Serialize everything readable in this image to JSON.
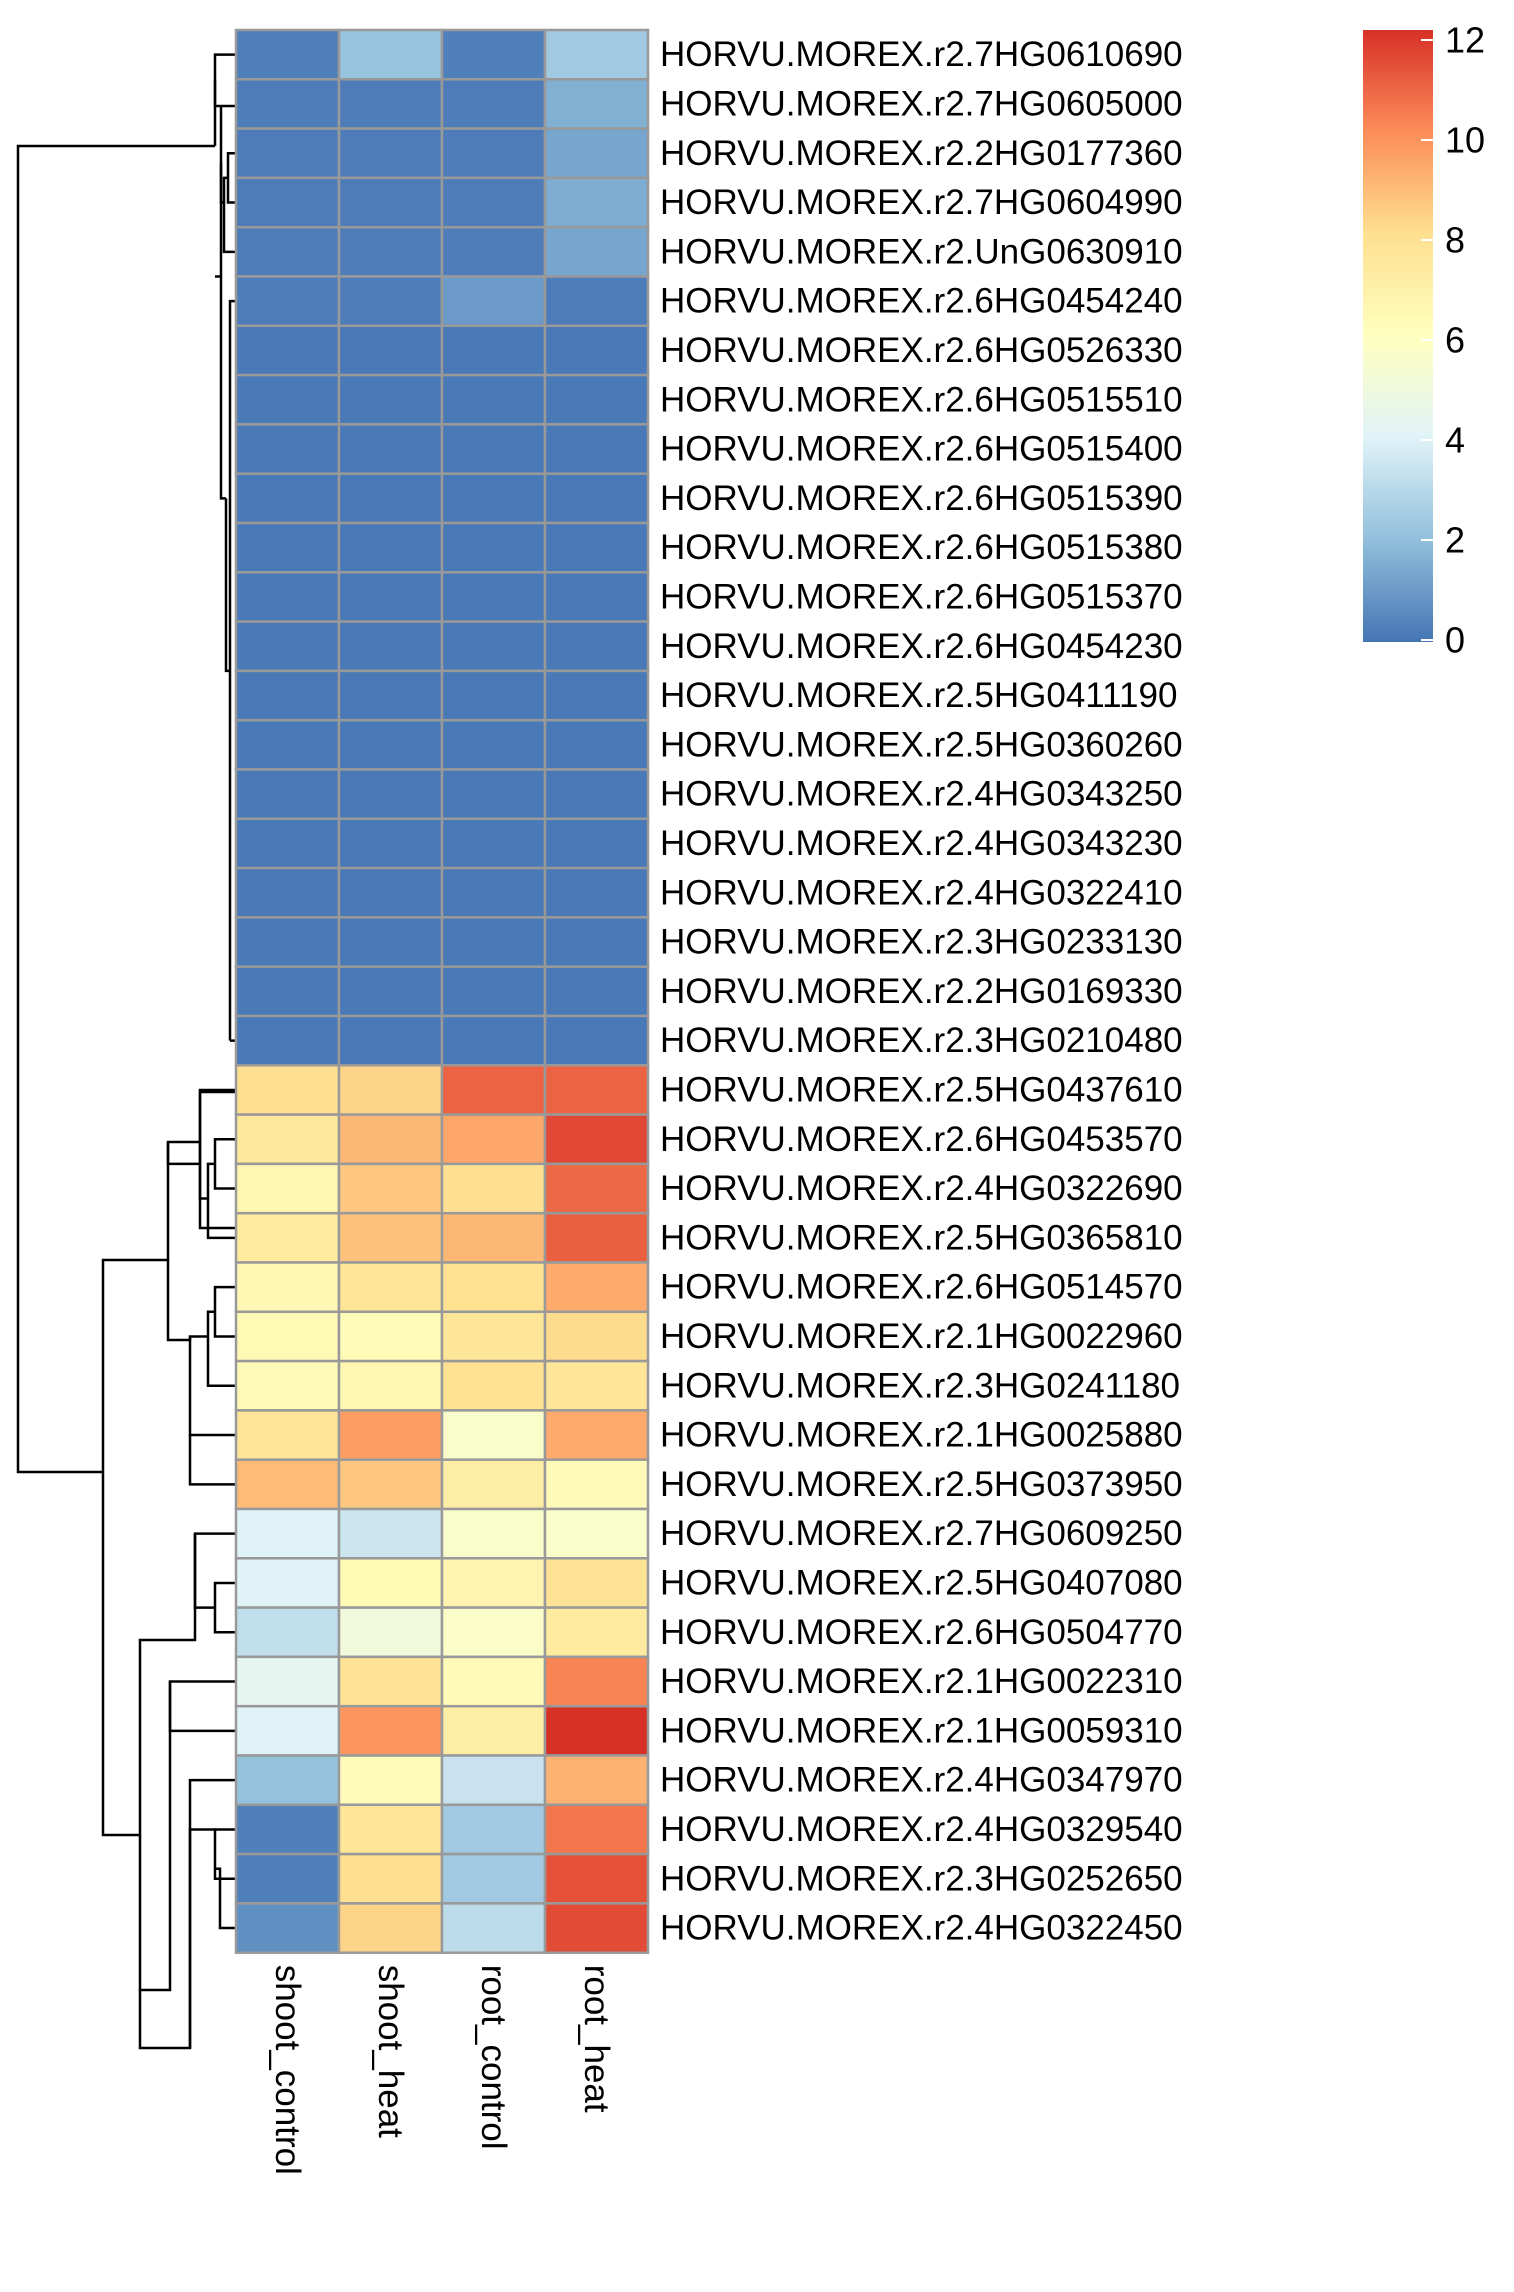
{
  "chart_data": {
    "type": "heatmap",
    "columns": [
      "shoot_control",
      "shoot_heat",
      "root_control",
      "root_heat"
    ],
    "rows": [
      "HORVU.MOREX.r2.7HG0610690",
      "HORVU.MOREX.r2.7HG0605000",
      "HORVU.MOREX.r2.2HG0177360",
      "HORVU.MOREX.r2.7HG0604990",
      "HORVU.MOREX.r2.UnG0630910",
      "HORVU.MOREX.r2.6HG0454240",
      "HORVU.MOREX.r2.6HG0526330",
      "HORVU.MOREX.r2.6HG0515510",
      "HORVU.MOREX.r2.6HG0515400",
      "HORVU.MOREX.r2.6HG0515390",
      "HORVU.MOREX.r2.6HG0515380",
      "HORVU.MOREX.r2.6HG0515370",
      "HORVU.MOREX.r2.6HG0454230",
      "HORVU.MOREX.r2.5HG0411190",
      "HORVU.MOREX.r2.5HG0360260",
      "HORVU.MOREX.r2.4HG0343250",
      "HORVU.MOREX.r2.4HG0343230",
      "HORVU.MOREX.r2.4HG0322410",
      "HORVU.MOREX.r2.3HG0233130",
      "HORVU.MOREX.r2.2HG0169330",
      "HORVU.MOREX.r2.3HG0210480",
      "HORVU.MOREX.r2.5HG0437610",
      "HORVU.MOREX.r2.6HG0453570",
      "HORVU.MOREX.r2.4HG0322690",
      "HORVU.MOREX.r2.5HG0365810",
      "HORVU.MOREX.r2.6HG0514570",
      "HORVU.MOREX.r2.1HG0022960",
      "HORVU.MOREX.r2.3HG0241180",
      "HORVU.MOREX.r2.1HG0025880",
      "HORVU.MOREX.r2.5HG0373950",
      "HORVU.MOREX.r2.7HG0609250",
      "HORVU.MOREX.r2.5HG0407080",
      "HORVU.MOREX.r2.6HG0504770",
      "HORVU.MOREX.r2.1HG0022310",
      "HORVU.MOREX.r2.1HG0059310",
      "HORVU.MOREX.r2.4HG0347970",
      "HORVU.MOREX.r2.4HG0329540",
      "HORVU.MOREX.r2.3HG0252650",
      "HORVU.MOREX.r2.4HG0322450"
    ],
    "values": [
      [
        0.3,
        2.2,
        0.3,
        2.4
      ],
      [
        0.2,
        0.2,
        0.2,
        1.6
      ],
      [
        0.2,
        0.2,
        0.2,
        1.3
      ],
      [
        0.2,
        0.2,
        0.2,
        1.5
      ],
      [
        0.2,
        0.2,
        0.2,
        1.3
      ],
      [
        0.2,
        0.2,
        1.0,
        0.2
      ],
      [
        0.1,
        0.1,
        0.1,
        0.1
      ],
      [
        0.1,
        0.1,
        0.1,
        0.1
      ],
      [
        0.1,
        0.1,
        0.1,
        0.1
      ],
      [
        0.1,
        0.1,
        0.1,
        0.1
      ],
      [
        0.1,
        0.1,
        0.1,
        0.1
      ],
      [
        0.1,
        0.1,
        0.1,
        0.1
      ],
      [
        0.1,
        0.1,
        0.1,
        0.1
      ],
      [
        0.1,
        0.1,
        0.1,
        0.1
      ],
      [
        0.1,
        0.1,
        0.1,
        0.1
      ],
      [
        0.1,
        0.1,
        0.1,
        0.1
      ],
      [
        0.1,
        0.1,
        0.1,
        0.1
      ],
      [
        0.1,
        0.1,
        0.1,
        0.1
      ],
      [
        0.1,
        0.1,
        0.1,
        0.1
      ],
      [
        0.1,
        0.1,
        0.1,
        0.1
      ],
      [
        0.1,
        0.1,
        0.1,
        0.1
      ],
      [
        8.0,
        8.3,
        10.9,
        10.9
      ],
      [
        7.5,
        9.0,
        9.4,
        11.5
      ],
      [
        6.6,
        8.6,
        8.0,
        10.8
      ],
      [
        7.3,
        8.7,
        9.0,
        11.0
      ],
      [
        6.5,
        7.6,
        7.9,
        9.3
      ],
      [
        6.4,
        6.2,
        7.6,
        8.1
      ],
      [
        6.3,
        6.6,
        7.9,
        7.7
      ],
      [
        7.7,
        9.6,
        5.6,
        9.3
      ],
      [
        8.9,
        8.6,
        7.1,
        6.3
      ],
      [
        4.0,
        3.5,
        5.6,
        5.6
      ],
      [
        4.0,
        6.4,
        6.7,
        7.8
      ],
      [
        3.2,
        5.0,
        5.7,
        7.3
      ],
      [
        4.3,
        7.8,
        6.3,
        10.2
      ],
      [
        4.0,
        9.8,
        7.1,
        12.0
      ],
      [
        2.1,
        6.2,
        3.4,
        9.1
      ],
      [
        0.3,
        7.6,
        2.4,
        10.5
      ],
      [
        0.3,
        8.0,
        2.4,
        11.3
      ],
      [
        0.7,
        8.3,
        3.1,
        11.4
      ]
    ],
    "colorbar": {
      "ticks": [
        "0",
        "2",
        "4",
        "6",
        "8",
        "10",
        "12"
      ],
      "range": [
        0,
        12
      ],
      "palette": [
        "#4575B4",
        "#91BFDB",
        "#E0F3F8",
        "#FFFFBF",
        "#FEE090",
        "#FC8D59",
        "#D73027"
      ]
    },
    "cell_border_color": "#999999",
    "dendrogram": "rows"
  }
}
